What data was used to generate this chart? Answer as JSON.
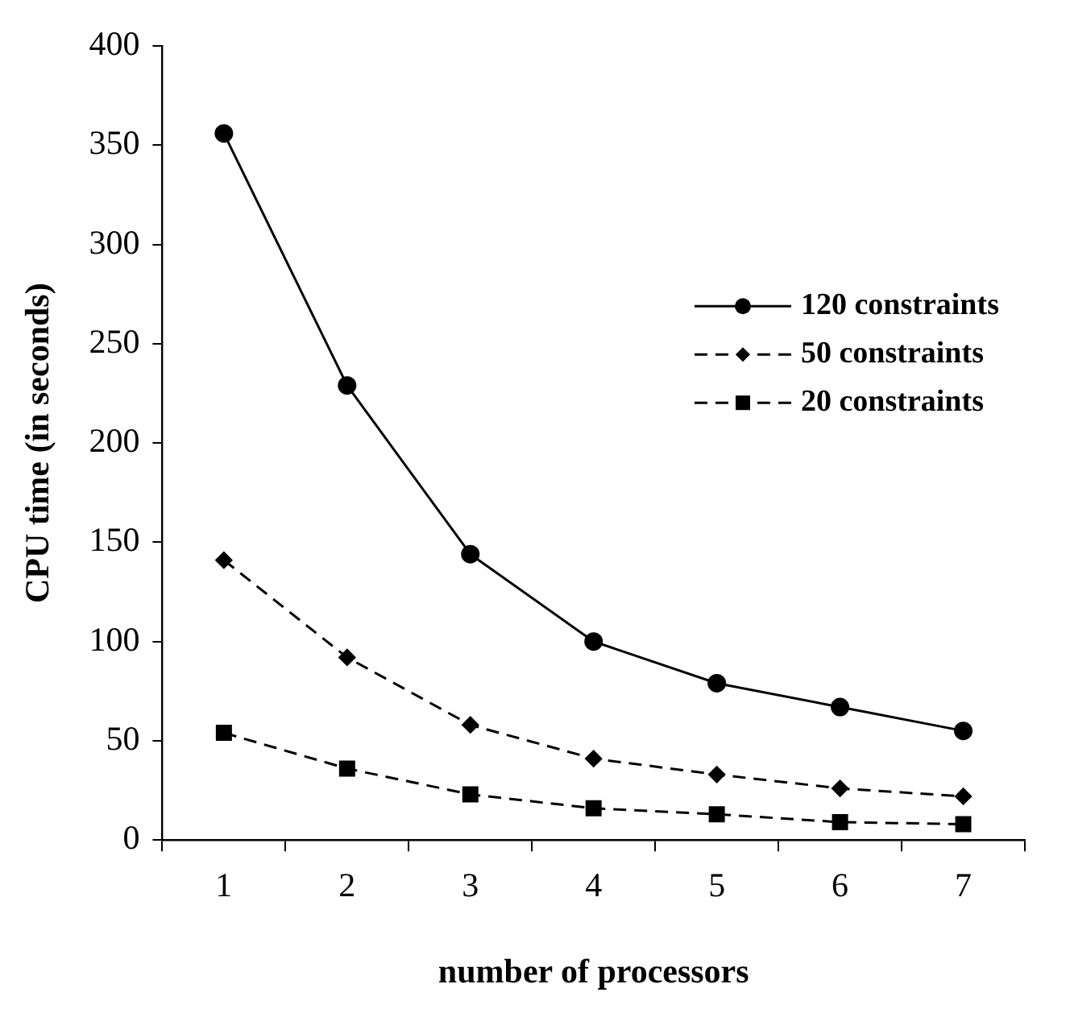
{
  "chart_data": {
    "type": "line",
    "xlabel": "number of processors",
    "ylabel": "CPU time (in seconds)",
    "categories": [
      "1",
      "2",
      "3",
      "4",
      "5",
      "6",
      "7"
    ],
    "series": [
      {
        "name": "120 constraints",
        "color": "#000000",
        "marker": "circle",
        "line_style": "solid",
        "values": [
          356,
          229,
          144,
          100,
          79,
          67,
          55
        ]
      },
      {
        "name": "50 constraints",
        "color": "#000000",
        "marker": "diamond",
        "line_style": "dashed",
        "values": [
          141,
          92,
          58,
          41,
          33,
          26,
          22
        ]
      },
      {
        "name": "20 constraints",
        "color": "#000000",
        "marker": "square",
        "line_style": "dashed",
        "values": [
          54,
          36,
          23,
          16,
          13,
          9,
          8
        ]
      }
    ],
    "ylim": [
      0,
      400
    ],
    "yticks": [
      0,
      50,
      100,
      150,
      200,
      250,
      300,
      350,
      400
    ],
    "grid": false,
    "legend": "right"
  }
}
